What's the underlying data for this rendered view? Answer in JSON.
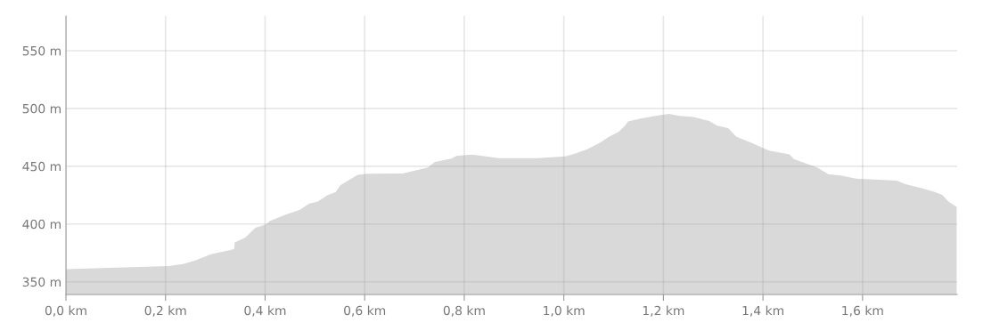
{
  "chart_data": {
    "type": "area",
    "color": "#d9d9d9",
    "grid": true,
    "x": [
      0,
      0.207,
      0.237,
      0.261,
      0.291,
      0.327,
      0.338,
      0.339,
      0.36,
      0.381,
      0.401,
      0.41,
      0.44,
      0.47,
      0.488,
      0.506,
      0.524,
      0.542,
      0.551,
      0.571,
      0.586,
      0.607,
      0.676,
      0.727,
      0.741,
      0.774,
      0.786,
      0.816,
      0.869,
      0.947,
      1.003,
      1.022,
      1.048,
      1.073,
      1.092,
      1.11,
      1.123,
      1.129,
      1.154,
      1.192,
      1.211,
      1.23,
      1.261,
      1.292,
      1.308,
      1.33,
      1.346,
      1.38,
      1.412,
      1.453,
      1.462,
      1.509,
      1.531,
      1.556,
      1.587,
      1.669,
      1.685,
      1.719,
      1.745,
      1.76,
      1.773,
      1.789
    ],
    "values": [
      361,
      363.6,
      365.6,
      368.7,
      373.8,
      377.2,
      378.5,
      384.1,
      388.2,
      396.9,
      399.5,
      402.8,
      407.9,
      412.3,
      417.5,
      419.5,
      424.6,
      427.7,
      433.6,
      438.7,
      442.5,
      443.6,
      443.8,
      449,
      453.8,
      456.7,
      459.2,
      460,
      457,
      457,
      458.6,
      460.8,
      464.8,
      470.5,
      475.9,
      479.7,
      485.1,
      488.8,
      491.3,
      494.2,
      495.3,
      493.7,
      492.6,
      489.2,
      485.1,
      482.9,
      475.6,
      469.7,
      463.5,
      460.2,
      456.2,
      448.9,
      443.2,
      441.9,
      439.2,
      437.5,
      434.6,
      431.1,
      427.8,
      425.2,
      419.2,
      414.9
    ],
    "xlim": [
      0,
      1.79
    ],
    "ylim": [
      339,
      580
    ],
    "xticks": [
      {
        "value": 0,
        "label": "0,0 km"
      },
      {
        "value": 0.2,
        "label": "0,2 km"
      },
      {
        "value": 0.4,
        "label": "0,4 km"
      },
      {
        "value": 0.6,
        "label": "0,6 km"
      },
      {
        "value": 0.8,
        "label": "0,8 km"
      },
      {
        "value": 1.0,
        "label": "1,0 km"
      },
      {
        "value": 1.2,
        "label": "1,2 km"
      },
      {
        "value": 1.4,
        "label": "1,4 km"
      },
      {
        "value": 1.6,
        "label": "1,6 km"
      }
    ],
    "yticks": [
      {
        "value": 350,
        "label": "350 m"
      },
      {
        "value": 400,
        "label": "400 m"
      },
      {
        "value": 450,
        "label": "450 m"
      },
      {
        "value": 500,
        "label": "500 m"
      },
      {
        "value": 550,
        "label": "550 m"
      }
    ]
  }
}
